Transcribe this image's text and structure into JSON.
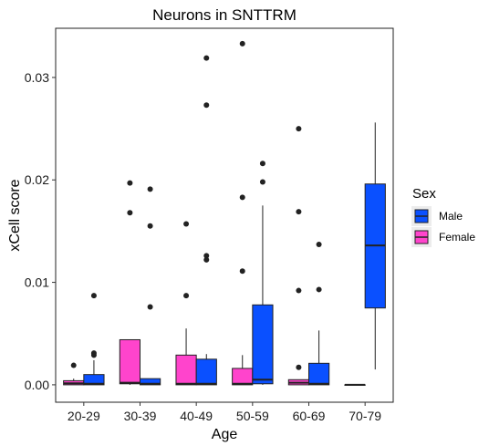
{
  "chart_data": {
    "type": "boxplot",
    "title": "Neurons in SNTTRM",
    "xlabel": "Age",
    "ylabel": "xCell score",
    "categories": [
      "20-29",
      "30-39",
      "40-49",
      "50-59",
      "60-69",
      "70-79"
    ],
    "ylim": [
      -0.0017,
      0.0348
    ],
    "yticks": [
      0.0,
      0.01,
      0.02,
      0.03
    ],
    "ytick_labels": [
      "0.00",
      "0.01",
      "0.02",
      "0.03"
    ],
    "grid": false,
    "legend": {
      "title": "Sex",
      "position": "right",
      "entries": [
        {
          "label": "Male",
          "color": "#0a50ff"
        },
        {
          "label": "Female",
          "color": "#ff44cc"
        }
      ]
    },
    "series": [
      {
        "name": "Female",
        "color": "#ff44cc",
        "boxes": [
          {
            "category": "20-29",
            "min": 0.0,
            "q1": 0.0,
            "median": 0.00015,
            "q3": 0.0004,
            "max": 0.0006,
            "outliers": [
              0.0019
            ]
          },
          {
            "category": "30-39",
            "min": 0.0,
            "q1": 0.0001,
            "median": 0.0002,
            "q3": 0.0044,
            "max": 0.0044,
            "outliers": [
              0.0197,
              0.0168
            ]
          },
          {
            "category": "40-49",
            "min": 0.0,
            "q1": 0.0,
            "median": 0.0001,
            "q3": 0.0029,
            "max": 0.0055,
            "outliers": [
              0.0157,
              0.0087
            ]
          },
          {
            "category": "50-59",
            "min": 0.0,
            "q1": 0.0,
            "median": 0.0001,
            "q3": 0.0016,
            "max": 0.0029,
            "outliers": [
              0.0333,
              0.0183,
              0.0111
            ]
          },
          {
            "category": "60-69",
            "min": 0.0,
            "q1": 0.0,
            "median": 0.0002,
            "q3": 0.0005,
            "max": 0.0005,
            "outliers": [
              0.025,
              0.0169,
              0.0092,
              0.0017
            ]
          },
          {
            "category": "70-79",
            "min": 0.0,
            "q1": 0.0,
            "median": 0.0,
            "q3": 0.0,
            "max": 0.0,
            "outliers": []
          }
        ]
      },
      {
        "name": "Male",
        "color": "#0a50ff",
        "boxes": [
          {
            "category": "20-29",
            "min": 0.0,
            "q1": 0.0,
            "median": 0.0001,
            "q3": 0.001,
            "max": 0.0024,
            "outliers": [
              0.0087,
              0.0031,
              0.0029
            ]
          },
          {
            "category": "30-39",
            "min": 0.0,
            "q1": 0.0,
            "median": 0.0001,
            "q3": 0.0006,
            "max": 0.0006,
            "outliers": [
              0.0191,
              0.0155,
              0.0076
            ]
          },
          {
            "category": "40-49",
            "min": 0.0,
            "q1": 0.0,
            "median": 0.0001,
            "q3": 0.0025,
            "max": 0.003,
            "outliers": [
              0.0319,
              0.0273,
              0.0126,
              0.0122
            ]
          },
          {
            "category": "50-59",
            "min": 0.0,
            "q1": 0.0001,
            "median": 0.0005,
            "q3": 0.0078,
            "max": 0.0175,
            "outliers": [
              0.0216,
              0.0198
            ]
          },
          {
            "category": "60-69",
            "min": 0.0,
            "q1": 0.0,
            "median": 0.0001,
            "q3": 0.0021,
            "max": 0.0053,
            "outliers": [
              0.0137,
              0.0093
            ]
          },
          {
            "category": "70-79",
            "min": 0.0015,
            "q1": 0.0075,
            "median": 0.0136,
            "q3": 0.0196,
            "max": 0.0256,
            "outliers": []
          }
        ]
      }
    ]
  }
}
